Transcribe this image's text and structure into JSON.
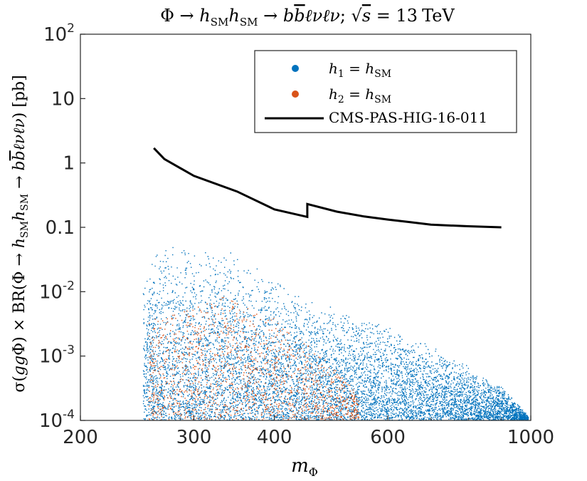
{
  "chart_data": {
    "type": "scatter",
    "title": "Φ → h_SM h_SM → b b̄ ℓνℓν; √s = 13 TeV",
    "title_parts": {
      "lhs": "Φ → ",
      "h": "h",
      "sm": "SM",
      "arrow": " → ",
      "b": "b",
      "bbar": "b",
      "lnu": "ℓνℓν",
      "semi": "; ",
      "sqrt": "√",
      "s": "s",
      "eq": " = 13",
      "unit": "TeV"
    },
    "xlabel": "m_Φ",
    "xlabel_parts": {
      "m": "m",
      "sub": "Φ"
    },
    "ylabel": "σ(ggΦ) × BR(Φ → h_SM h_SM → b b̄ ℓνℓν) [pb]",
    "ylabel_parts": {
      "pre": "σ(",
      "gg": "gg",
      "phi": "Φ) × BR(Φ → ",
      "h": "h",
      "sm": "SM",
      "arrow": " → ",
      "b": "b",
      "lnu": "ℓνℓν",
      "post": ") [pb]"
    },
    "x_scale": "log",
    "y_scale": "log",
    "xlim": [
      200,
      1000
    ],
    "ylim": [
      0.0001,
      100
    ],
    "x_ticks": [
      {
        "value": 200,
        "label": "200"
      },
      {
        "value": 300,
        "label": "300"
      },
      {
        "value": 400,
        "label": "400"
      },
      {
        "value": 600,
        "label": "600"
      },
      {
        "value": 1000,
        "label": "1000"
      }
    ],
    "y_ticks": [
      {
        "value": 0.0001,
        "base": "10",
        "exp": "-4"
      },
      {
        "value": 0.001,
        "base": "10",
        "exp": "-3"
      },
      {
        "value": 0.01,
        "base": "10",
        "exp": "-2"
      },
      {
        "value": 0.1,
        "label": "0.1"
      },
      {
        "value": 1,
        "label": "1"
      },
      {
        "value": 10,
        "label": "10"
      },
      {
        "value": 100,
        "base": "10",
        "exp": "2"
      }
    ],
    "grid": false,
    "legend": {
      "placement": "top-right",
      "entries": [
        {
          "label_var": "h",
          "label_sub": "1",
          "label_rest": " = h",
          "label_rest_sub": "SM",
          "marker": "dot",
          "color": "#0072bd"
        },
        {
          "label_var": "h",
          "label_sub": "2",
          "label_rest": " = h",
          "label_rest_sub": "SM",
          "marker": "dot",
          "color": "#d95319"
        },
        {
          "label": "CMS-PAS-HIG-16-011",
          "marker": "line",
          "color": "#000000"
        }
      ]
    },
    "series": [
      {
        "label_var": "h",
        "label_sub": "1",
        "kind": "scatter-density",
        "color": "#0072bd",
        "x_min": 250,
        "x_max": 990,
        "y_upper_envelope": [
          {
            "x": 250,
            "y": 0.018
          },
          {
            "x": 265,
            "y": 0.06
          },
          {
            "x": 300,
            "y": 0.05
          },
          {
            "x": 335,
            "y": 0.06
          },
          {
            "x": 345,
            "y": 0.045
          },
          {
            "x": 360,
            "y": 0.028
          },
          {
            "x": 380,
            "y": 0.022
          },
          {
            "x": 420,
            "y": 0.012
          },
          {
            "x": 500,
            "y": 0.006
          },
          {
            "x": 600,
            "y": 0.003
          },
          {
            "x": 700,
            "y": 0.0015
          },
          {
            "x": 800,
            "y": 0.0007
          },
          {
            "x": 900,
            "y": 0.00035
          },
          {
            "x": 990,
            "y": 0.00012
          }
        ]
      },
      {
        "label_var": "h",
        "label_sub": "2",
        "kind": "scatter-density",
        "color": "#d95319",
        "x_min": 255,
        "x_max": 540,
        "y_upper_envelope": [
          {
            "x": 255,
            "y": 0.004
          },
          {
            "x": 300,
            "y": 0.006
          },
          {
            "x": 340,
            "y": 0.009
          },
          {
            "x": 400,
            "y": 0.004
          },
          {
            "x": 450,
            "y": 0.0015
          },
          {
            "x": 500,
            "y": 0.0006
          },
          {
            "x": 540,
            "y": 0.00025
          }
        ]
      },
      {
        "name": "CMS-PAS-HIG-16-011",
        "kind": "line",
        "color": "#000000",
        "points": [
          {
            "x": 260,
            "y": 1.7
          },
          {
            "x": 270,
            "y": 1.15
          },
          {
            "x": 300,
            "y": 0.63
          },
          {
            "x": 350,
            "y": 0.36
          },
          {
            "x": 400,
            "y": 0.19
          },
          {
            "x": 450,
            "y": 0.145
          },
          {
            "x": 450,
            "y": 0.23
          },
          {
            "x": 500,
            "y": 0.175
          },
          {
            "x": 550,
            "y": 0.148
          },
          {
            "x": 600,
            "y": 0.132
          },
          {
            "x": 650,
            "y": 0.12
          },
          {
            "x": 700,
            "y": 0.11
          },
          {
            "x": 800,
            "y": 0.104
          },
          {
            "x": 900,
            "y": 0.1
          }
        ]
      }
    ]
  }
}
